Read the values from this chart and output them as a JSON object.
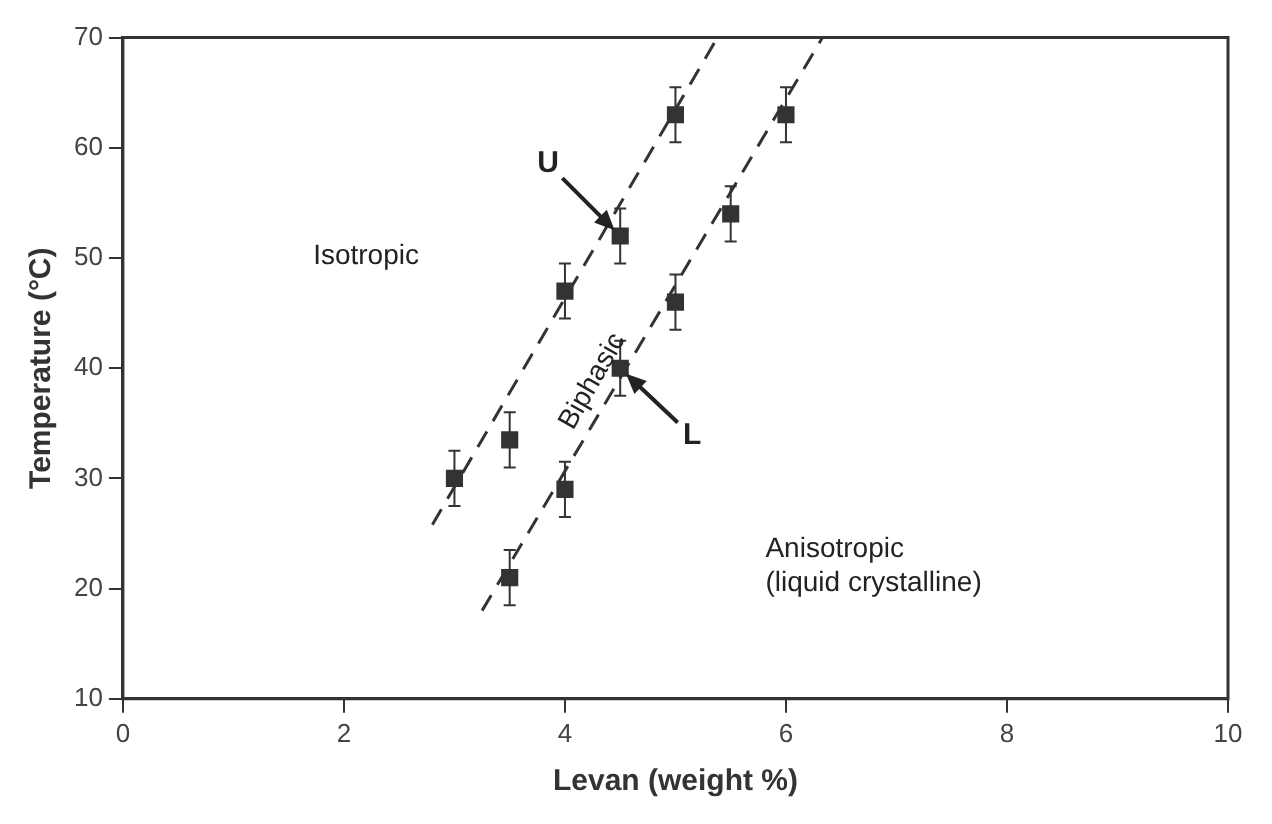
{
  "chart_data": {
    "type": "scatter",
    "xlabel": "Levan (weight %)",
    "ylabel": "Temperature (°C)",
    "xlim": [
      0,
      10
    ],
    "xticks": [
      0,
      2,
      4,
      6,
      8,
      10
    ],
    "ylim": [
      10,
      70
    ],
    "yticks": [
      10,
      20,
      30,
      40,
      50,
      60,
      70
    ],
    "grid": false,
    "legend": false,
    "marker": "square",
    "series": [
      {
        "color": "#333333",
        "x": [
          3,
          3.5,
          4,
          4.5,
          5
        ],
        "values": [
          30,
          33.5,
          47,
          52,
          63
        ],
        "errors": [
          2.5,
          2.5,
          2.5,
          2.5,
          2.5
        ]
      },
      {
        "color": "#333333",
        "x": [
          3.5,
          4,
          4.5,
          5,
          5.5,
          6
        ],
        "values": [
          21,
          29,
          40,
          46,
          54,
          63
        ],
        "errors": [
          2.5,
          2.5,
          2.5,
          2.5,
          2.5,
          2.5
        ]
      },
      {
        "type": "line",
        "color": "#333333",
        "line_style": "dashed",
        "marker": "none",
        "x": [
          2.8,
          5.38
        ],
        "values": [
          25.8,
          70
        ]
      },
      {
        "type": "line",
        "color": "#333333",
        "line_style": "dashed",
        "marker": "none",
        "x": [
          3.25,
          6.33
        ],
        "values": [
          18,
          70
        ]
      }
    ],
    "annotations": [
      "Isotropic",
      "Biphasic",
      "Anisotropic\n(liquid crystalline)",
      {
        "text": "U",
        "x": 4.5,
        "y": 52
      },
      {
        "text": "L",
        "x": 4.5,
        "y": 40
      }
    ]
  }
}
